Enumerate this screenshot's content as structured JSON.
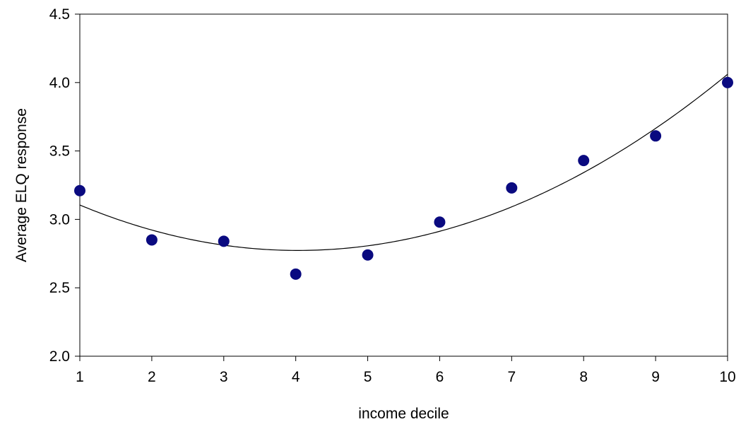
{
  "chart_data": {
    "type": "scatter",
    "title": "",
    "xlabel": "income decile",
    "ylabel": "Average ELQ response",
    "xlim": [
      1,
      10
    ],
    "ylim": [
      2.0,
      4.5
    ],
    "grid": false,
    "x_ticks": [
      "1",
      "2",
      "3",
      "4",
      "5",
      "6",
      "7",
      "8",
      "9",
      "10"
    ],
    "y_ticks": [
      "2.0",
      "2.5",
      "3.0",
      "3.5",
      "4.0",
      "4.5"
    ],
    "series": [
      {
        "kind": "scatter",
        "color": "#0a0a80",
        "x": [
          1,
          2,
          3,
          4,
          5,
          6,
          7,
          8,
          9,
          10
        ],
        "y": [
          3.21,
          2.85,
          2.84,
          2.6,
          2.74,
          2.98,
          3.23,
          3.43,
          3.61,
          4.0
        ]
      },
      {
        "kind": "trend_line",
        "fit": "polynomial-2",
        "color": "#000000"
      }
    ]
  }
}
